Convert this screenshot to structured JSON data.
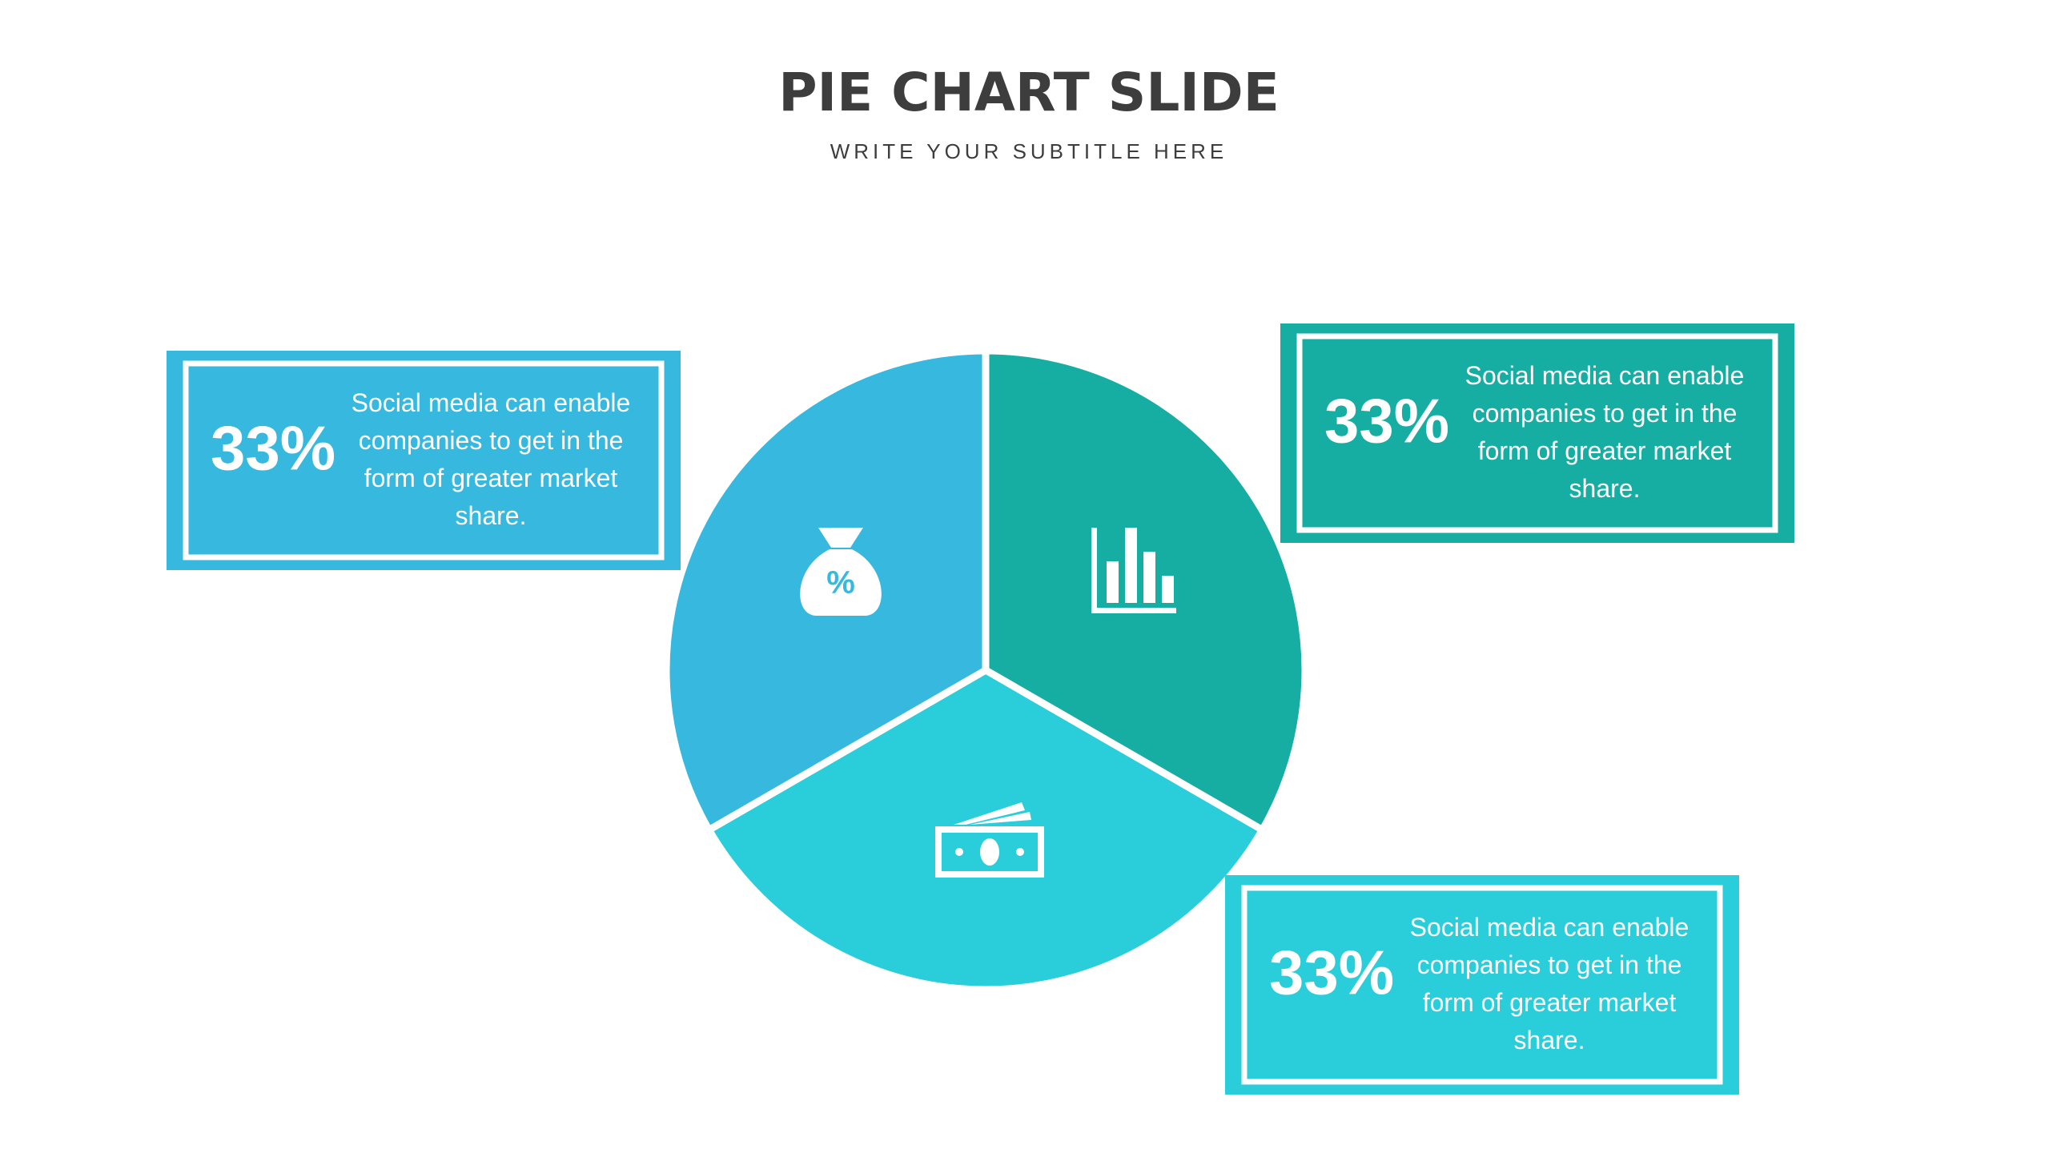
{
  "chart_data": {
    "type": "pie",
    "title": "PIE CHART SLIDE",
    "subtitle": "WRITE YOUR SUBTITLE HERE",
    "values": [
      33,
      33,
      33
    ],
    "value_labels": [
      "33%",
      "33%",
      "33%"
    ],
    "colors": [
      "#16ada3",
      "#2acdda",
      "#36b8df"
    ],
    "descriptions": [
      "Social media can enable companies to get in the form of greater market share.",
      "Social media can enable companies to get in the form of greater market share.",
      "Social media can enable companies to get in the form of greater market share."
    ]
  }
}
